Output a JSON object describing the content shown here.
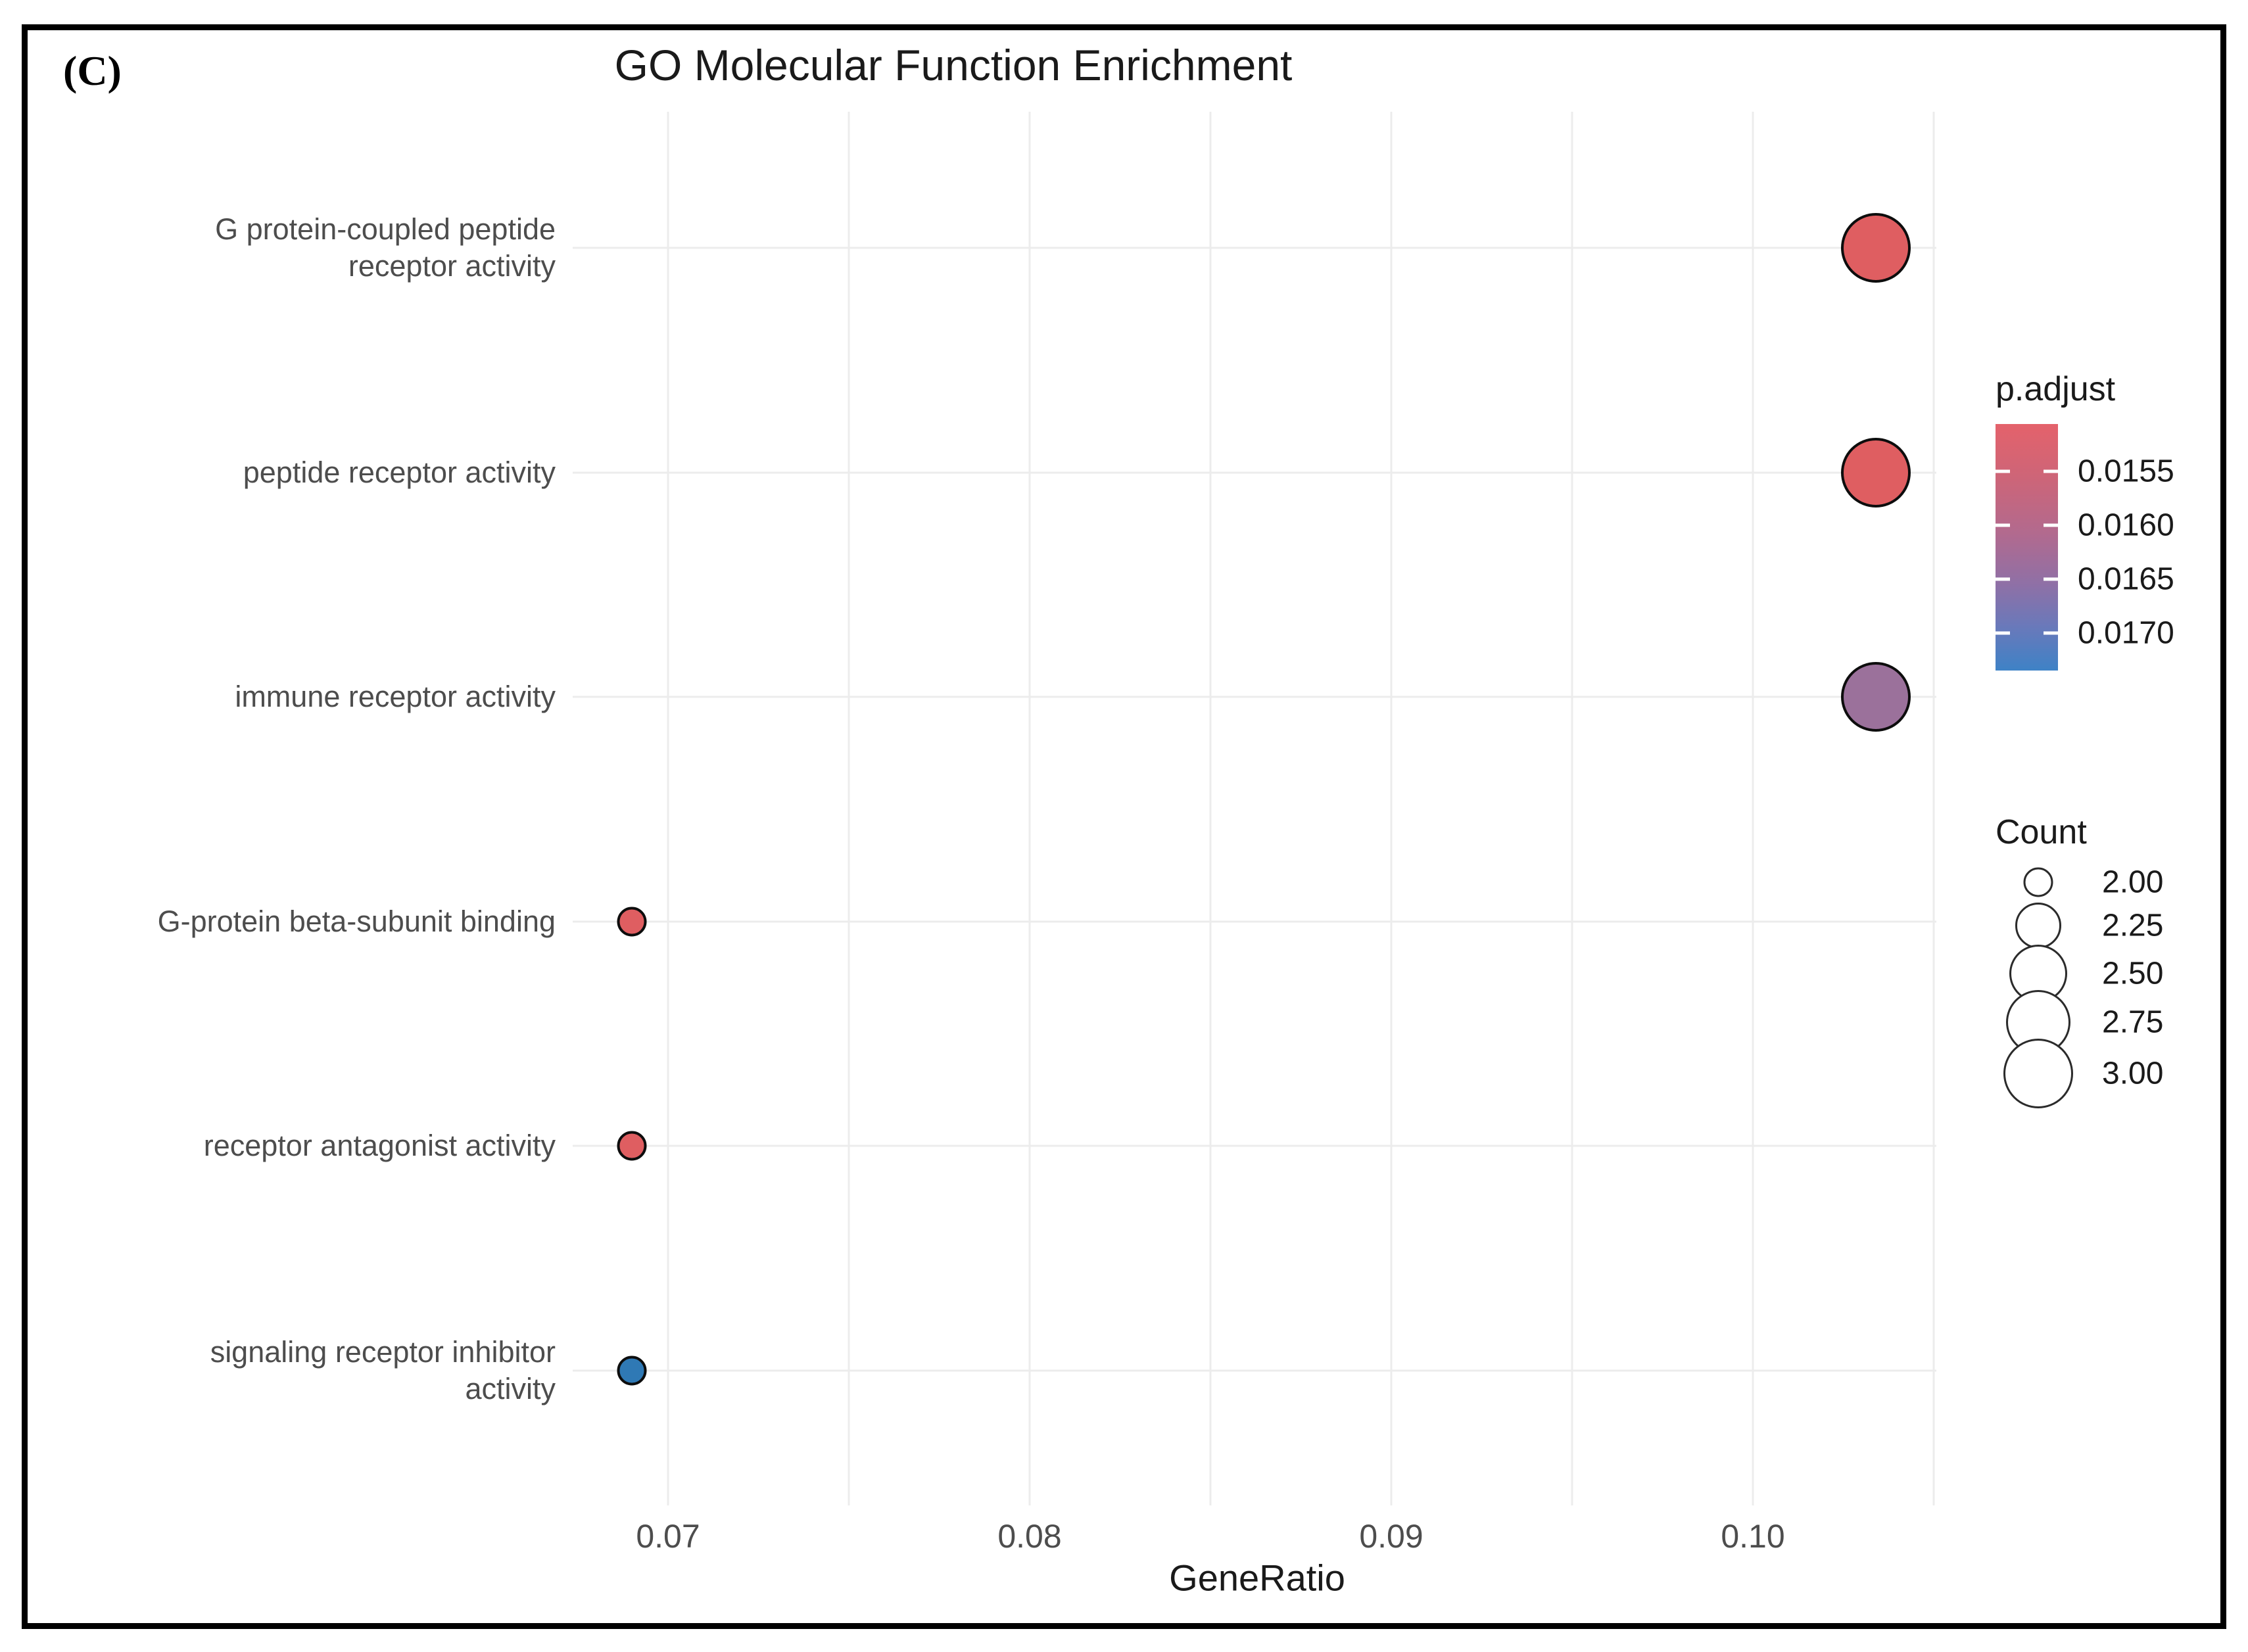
{
  "figure_label": "(C)",
  "title": "GO Molecular Function Enrichment",
  "x_axis": {
    "title": "GeneRatio",
    "ticks": [
      "0.07",
      "0.08",
      "0.09",
      "0.10"
    ]
  },
  "chart_data": {
    "type": "scatter",
    "title": "GO Molecular Function Enrichment",
    "xlabel": "GeneRatio",
    "ylabel": "",
    "xlim": [
      0.0673,
      0.1051
    ],
    "x_ticks": [
      0.07,
      0.08,
      0.09,
      0.1
    ],
    "x_minor_gridlines": [
      0.075,
      0.085,
      0.095,
      0.105
    ],
    "grid": true,
    "legend_position": "right",
    "categories": [
      "G protein-coupled peptide\nreceptor activity",
      "peptide receptor activity",
      "immune receptor activity",
      "G-protein beta-subunit binding",
      "receptor antagonist activity",
      "signaling receptor inhibitor\nactivity"
    ],
    "points": [
      {
        "category": "G protein-coupled peptide receptor activity",
        "gene_ratio": 0.1034,
        "count": 3,
        "p_adjust": 0.0153,
        "color": "#df5e61"
      },
      {
        "category": "peptide receptor activity",
        "gene_ratio": 0.1034,
        "count": 3,
        "p_adjust": 0.0153,
        "color": "#df5e61"
      },
      {
        "category": "immune receptor activity",
        "gene_ratio": 0.1034,
        "count": 3,
        "p_adjust": 0.0165,
        "color": "#9b719b"
      },
      {
        "category": "G-protein beta-subunit binding",
        "gene_ratio": 0.069,
        "count": 2,
        "p_adjust": 0.0154,
        "color": "#df5e61"
      },
      {
        "category": "receptor antagonist activity",
        "gene_ratio": 0.069,
        "count": 2,
        "p_adjust": 0.0154,
        "color": "#df5e61"
      },
      {
        "category": "signaling receptor inhibitor activity",
        "gene_ratio": 0.069,
        "count": 2,
        "p_adjust": 0.0172,
        "color": "#2f79b5"
      }
    ],
    "legends": {
      "p_adjust": {
        "title": "p.adjust",
        "tick_labels": [
          "0.0155",
          "0.0160",
          "0.0165",
          "0.0170"
        ],
        "gradient_top_color": "#e4626b",
        "gradient_bottom_color": "#3e82c6"
      },
      "count": {
        "title": "Count",
        "entries": [
          {
            "label": "2.00",
            "diameter": 45
          },
          {
            "label": "2.25",
            "diameter": 70
          },
          {
            "label": "2.50",
            "diameter": 88
          },
          {
            "label": "2.75",
            "diameter": 98
          },
          {
            "label": "3.00",
            "diameter": 106
          }
        ]
      }
    }
  }
}
